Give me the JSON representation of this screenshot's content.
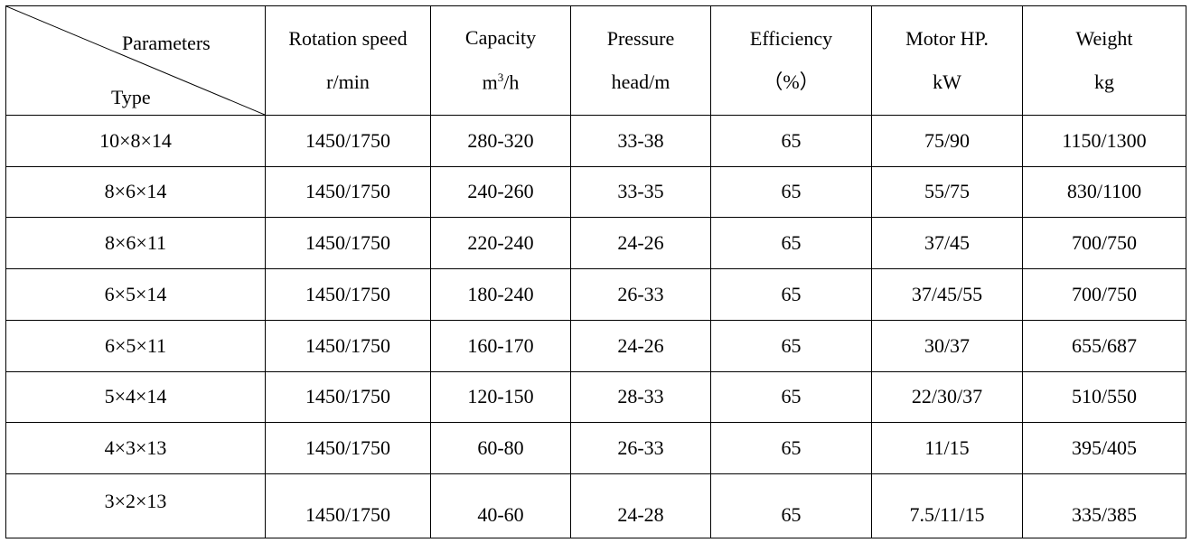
{
  "header": {
    "corner_param": "Parameters",
    "corner_type": "Type",
    "columns": [
      {
        "line1": "Rotation speed",
        "line2": "r/min"
      },
      {
        "line1": "Capacity",
        "line2_base": "m",
        "line2_sup": "3",
        "line2_rest": "/h"
      },
      {
        "line1": "Pressure",
        "line2": "head/m"
      },
      {
        "line1": "Efficiency",
        "line2": "（%）"
      },
      {
        "line1": "Motor HP.",
        "line2": "kW"
      },
      {
        "line1": "Weight",
        "line2": "kg"
      }
    ]
  },
  "rows": [
    {
      "type": "10×8×14",
      "speed": "1450/1750",
      "capacity": "280-320",
      "head": "33-38",
      "efficiency": "65",
      "motor": "75/90",
      "weight": "1150/1300"
    },
    {
      "type": "8×6×14",
      "speed": "1450/1750",
      "capacity": "240-260",
      "head": "33-35",
      "efficiency": "65",
      "motor": "55/75",
      "weight": "830/1100"
    },
    {
      "type": "8×6×11",
      "speed": "1450/1750",
      "capacity": "220-240",
      "head": "24-26",
      "efficiency": "65",
      "motor": "37/45",
      "weight": "700/750"
    },
    {
      "type": "6×5×14",
      "speed": "1450/1750",
      "capacity": "180-240",
      "head": "26-33",
      "efficiency": "65",
      "motor": "37/45/55",
      "weight": "700/750"
    },
    {
      "type": "6×5×11",
      "speed": "1450/1750",
      "capacity": "160-170",
      "head": "24-26",
      "efficiency": "65",
      "motor": "30/37",
      "weight": "655/687"
    },
    {
      "type": "5×4×14",
      "speed": "1450/1750",
      "capacity": "120-150",
      "head": "28-33",
      "efficiency": "65",
      "motor": "22/30/37",
      "weight": "510/550"
    },
    {
      "type": "4×3×13",
      "speed": "1450/1750",
      "capacity": "60-80",
      "head": "26-33",
      "efficiency": "65",
      "motor": "11/15",
      "weight": "395/405"
    },
    {
      "type": "3×2×13",
      "speed": "1450/1750",
      "capacity": "40-60",
      "head": "24-28",
      "efficiency": "65",
      "motor": "7.5/11/15",
      "weight": "335/385"
    }
  ]
}
